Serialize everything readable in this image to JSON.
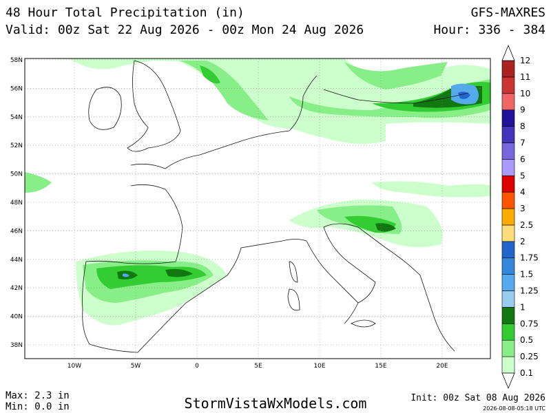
{
  "header": {
    "title": "48 Hour Total Precipitation (in)",
    "valid": "Valid: 00z Sat 22 Aug 2026 - 00z Mon 24 Aug 2026",
    "model": "GFS-MAXRES",
    "hour": "Hour: 336 - 384"
  },
  "map": {
    "lat_labels": [
      "58N",
      "56N",
      "54N",
      "52N",
      "50N",
      "48N",
      "46N",
      "44N",
      "42N",
      "40N",
      "38N"
    ],
    "lon_labels": [
      "10W",
      "5W",
      "0",
      "5E",
      "10E",
      "15E",
      "20E"
    ]
  },
  "legend": {
    "levels": [
      "0.1",
      "0.25",
      "0.5",
      "0.75",
      "1",
      "1.25",
      "1.5",
      "1.75",
      "2",
      "2.5",
      "3",
      "4",
      "5",
      "6",
      "7",
      "8",
      "9",
      "10",
      "11",
      "12"
    ],
    "colors": [
      "#ccffcc",
      "#88ee88",
      "#33cc33",
      "#117711",
      "#99ccee",
      "#55aaee",
      "#3388dd",
      "#2266cc",
      "#ffdd77",
      "#ffaa00",
      "#ff5500",
      "#dd0000",
      "#aa99ff",
      "#7766dd",
      "#4433bb",
      "#221199",
      "#ee6666",
      "#cc3333",
      "#aa2222"
    ]
  },
  "footer": {
    "max": "Max: 2.3 in",
    "min": "Min: 0.0 in",
    "site": "StormVistaWxModels.com",
    "init": "Init: 00z Sat 08 Aug 2026",
    "timestamp": "2026-08-08-05:18 UTC"
  }
}
